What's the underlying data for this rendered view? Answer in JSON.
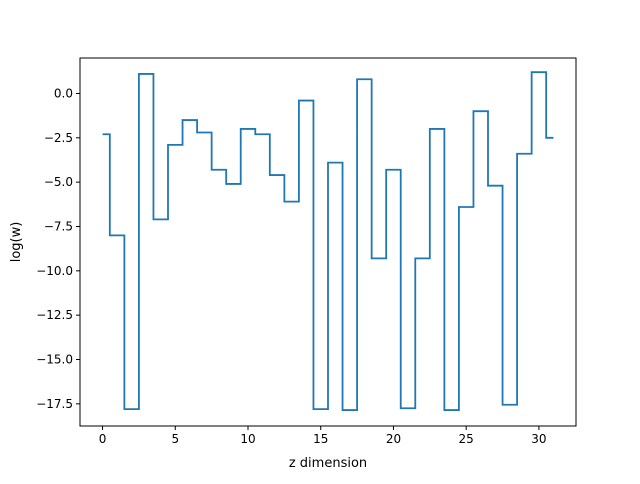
{
  "chart_data": {
    "type": "line",
    "drawstyle": "steps-mid",
    "title": "",
    "xlabel": "z dimension",
    "ylabel": "log(w)",
    "xlim": [
      -1.55,
      32.55
    ],
    "ylim": [
      -18.75,
      2.0
    ],
    "x_ticks": [
      0,
      5,
      10,
      15,
      20,
      25,
      30
    ],
    "x_tick_labels": [
      "0",
      "5",
      "10",
      "15",
      "20",
      "25",
      "30"
    ],
    "y_ticks": [
      0.0,
      -2.5,
      -5.0,
      -7.5,
      -10.0,
      -12.5,
      -15.0,
      -17.5
    ],
    "y_tick_labels": [
      "0.0",
      "−2.5",
      "−5.0",
      "−7.5",
      "−10.0",
      "−12.5",
      "−15.0",
      "−17.5"
    ],
    "grid": false,
    "series": [
      {
        "color": "#1f77b4",
        "x": [
          0,
          1,
          2,
          3,
          4,
          5,
          6,
          7,
          8,
          9,
          10,
          11,
          12,
          13,
          14,
          15,
          16,
          17,
          18,
          19,
          20,
          21,
          22,
          23,
          24,
          25,
          26,
          27,
          28,
          29,
          30,
          31
        ],
        "y": [
          -2.3,
          -8.0,
          -17.8,
          1.1,
          -7.1,
          -2.9,
          -1.5,
          -2.2,
          -4.3,
          -5.1,
          -2.0,
          -2.3,
          -4.6,
          -6.1,
          -0.4,
          -17.8,
          -3.9,
          -17.85,
          0.8,
          -9.3,
          -4.3,
          -17.75,
          -9.3,
          -2.0,
          -17.85,
          -6.4,
          -1.0,
          -5.2,
          -17.55,
          -3.4,
          1.2,
          -2.5
        ]
      }
    ]
  }
}
